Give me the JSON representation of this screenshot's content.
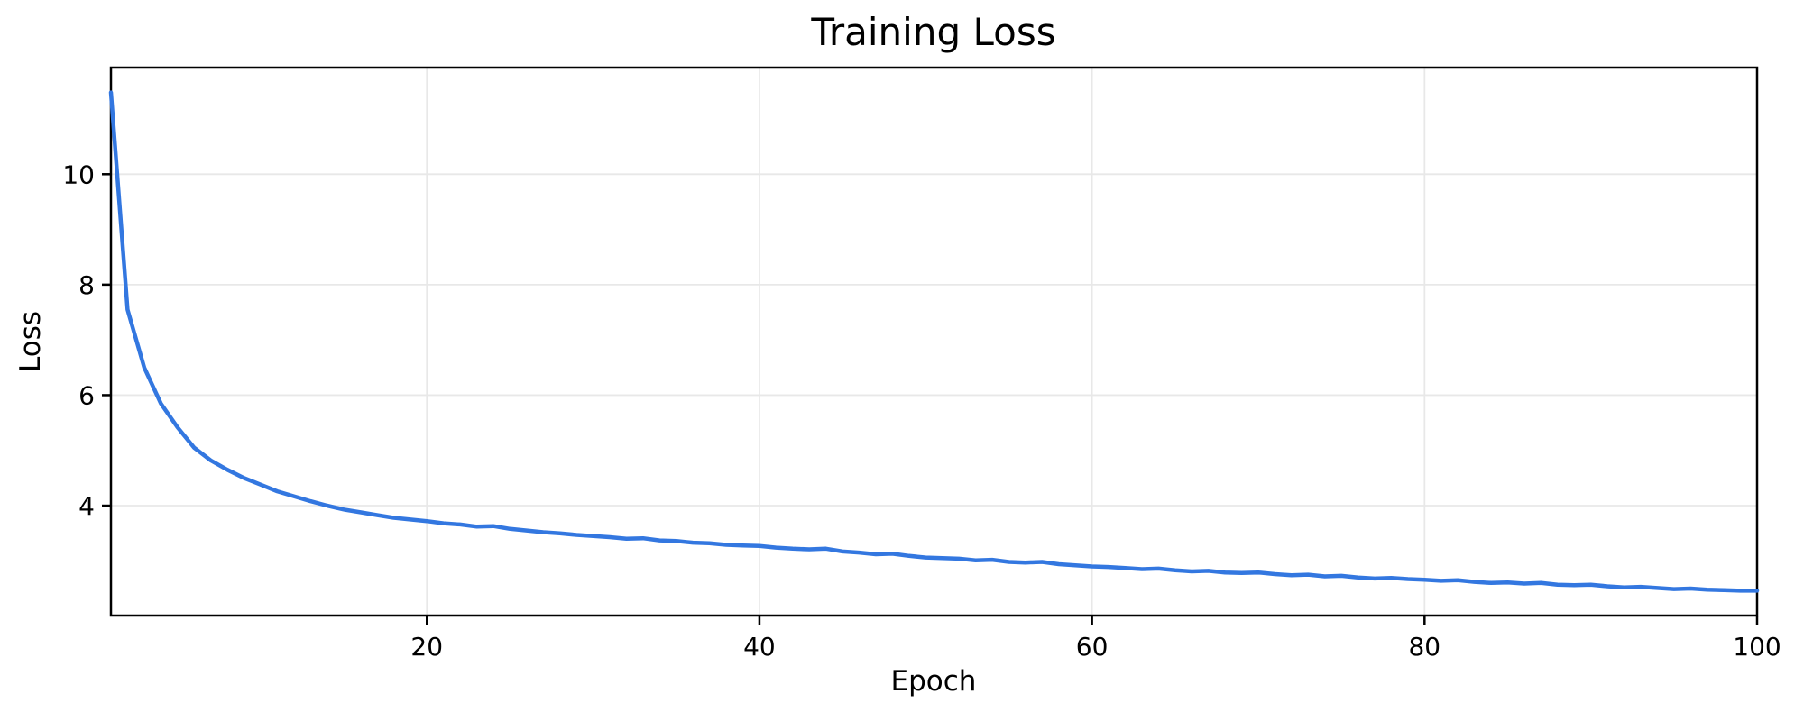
{
  "figure": {
    "background": "#ffffff"
  },
  "chart_data": {
    "type": "line",
    "title": "Training Loss",
    "xlabel": "Epoch",
    "ylabel": "Loss",
    "xlim": [
      1,
      100
    ],
    "ylim": [
      2.01,
      11.93
    ],
    "x_ticks": [
      20,
      40,
      60,
      80,
      100
    ],
    "y_ticks": [
      4,
      6,
      8,
      10
    ],
    "grid": true,
    "legend_position": "none",
    "line_color": "#3377e0",
    "grid_color": "#e8e8e8",
    "spine_color": "#000000",
    "series": [
      {
        "name": "training_loss",
        "x_start": 1,
        "x_step": 1,
        "values": [
          11.48,
          7.55,
          6.5,
          5.85,
          5.42,
          5.05,
          4.82,
          4.65,
          4.5,
          4.38,
          4.26,
          4.17,
          4.08,
          4.0,
          3.93,
          3.88,
          3.83,
          3.78,
          3.75,
          3.72,
          3.68,
          3.66,
          3.62,
          3.63,
          3.58,
          3.55,
          3.52,
          3.5,
          3.47,
          3.45,
          3.43,
          3.4,
          3.41,
          3.37,
          3.36,
          3.33,
          3.32,
          3.29,
          3.28,
          3.27,
          3.24,
          3.22,
          3.21,
          3.22,
          3.17,
          3.15,
          3.12,
          3.13,
          3.09,
          3.06,
          3.05,
          3.04,
          3.01,
          3.02,
          2.98,
          2.97,
          2.98,
          2.94,
          2.92,
          2.9,
          2.89,
          2.87,
          2.85,
          2.86,
          2.83,
          2.81,
          2.82,
          2.79,
          2.78,
          2.79,
          2.76,
          2.74,
          2.75,
          2.72,
          2.73,
          2.7,
          2.68,
          2.69,
          2.67,
          2.66,
          2.64,
          2.65,
          2.62,
          2.6,
          2.61,
          2.59,
          2.6,
          2.57,
          2.56,
          2.57,
          2.54,
          2.52,
          2.53,
          2.51,
          2.49,
          2.5,
          2.48,
          2.47,
          2.46,
          2.46
        ]
      }
    ]
  }
}
